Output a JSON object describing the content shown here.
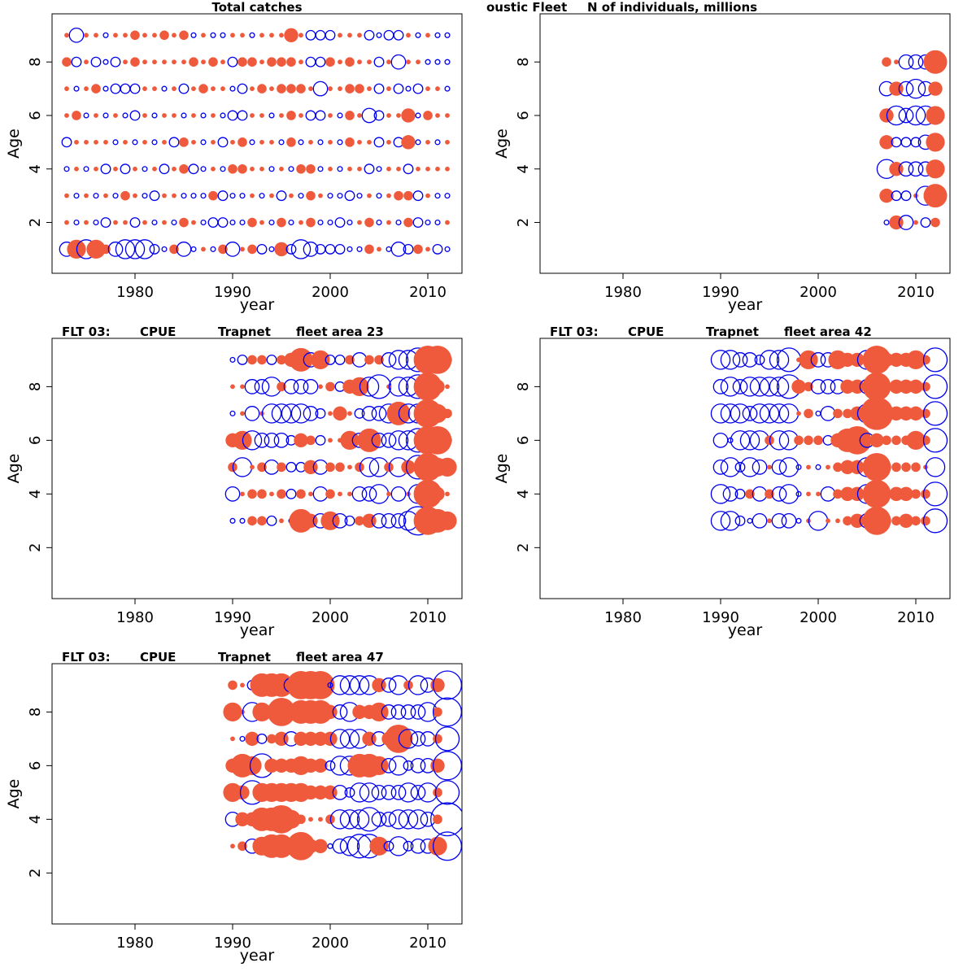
{
  "colors": {
    "positive": "#ef5a3c",
    "negative": "#0000ee",
    "frame": "#000000"
  },
  "chart_data": [
    {
      "type": "bubble",
      "title_parts": [
        "Total catches"
      ],
      "xlabel": "year",
      "ylabel": "Age",
      "xlim": [
        1971.5,
        2013.5
      ],
      "ylim": [
        0.1,
        9.8
      ],
      "xticks": [
        1980,
        1990,
        2000,
        2010
      ],
      "yticks": [
        2,
        4,
        6,
        8
      ],
      "years": [
        1973,
        1974,
        1975,
        1976,
        1977,
        1978,
        1979,
        1980,
        1981,
        1982,
        1983,
        1984,
        1985,
        1986,
        1987,
        1988,
        1989,
        1990,
        1991,
        1992,
        1993,
        1994,
        1995,
        1996,
        1997,
        1998,
        1999,
        2000,
        2001,
        2002,
        2003,
        2004,
        2005,
        2006,
        2007,
        2008,
        2009,
        2010,
        2011,
        2012
      ],
      "ages": [
        1,
        2,
        3,
        4,
        5,
        6,
        7,
        8,
        9
      ],
      "residuals": [
        [
          -3,
          4,
          -4,
          4,
          2,
          -3,
          -4,
          -4,
          -4,
          -2,
          -1,
          2,
          -3,
          -1,
          1,
          -1,
          2,
          -3,
          1,
          2,
          -2,
          -1,
          3,
          -2,
          -4,
          -3,
          -2,
          -2,
          -2,
          -1,
          -1,
          2,
          1,
          -1,
          -3,
          -2,
          2,
          1,
          -2,
          -1
        ],
        [
          1,
          -1,
          1,
          -1,
          -2,
          1,
          1,
          -2,
          1,
          -1,
          1,
          -1,
          2,
          1,
          -1,
          -2,
          -2,
          -1,
          -1,
          2,
          1,
          -1,
          2,
          -1,
          1,
          2,
          -1,
          -1,
          -2,
          -1,
          1,
          2,
          -1,
          1,
          -1,
          2,
          -2,
          -1,
          -1,
          1
        ],
        [
          1,
          -1,
          1,
          -1,
          1,
          -1,
          2,
          1,
          -1,
          -2,
          1,
          1,
          -1,
          -1,
          -1,
          2,
          -2,
          -1,
          -1,
          1,
          -1,
          1,
          -2,
          1,
          -1,
          2,
          1,
          -1,
          -1,
          -2,
          -1,
          1,
          -1,
          1,
          2,
          2,
          -2,
          1,
          -1,
          -1
        ],
        [
          -1,
          1,
          -1,
          1,
          -2,
          1,
          -2,
          1,
          -1,
          1,
          -2,
          1,
          2,
          -2,
          -1,
          1,
          -1,
          2,
          2,
          1,
          1,
          -1,
          1,
          -1,
          2,
          2,
          -1,
          1,
          -1,
          1,
          1,
          -2,
          -1,
          1,
          1,
          -2,
          1,
          1,
          1,
          1
        ],
        [
          -2,
          1,
          1,
          1,
          1,
          -1,
          1,
          -1,
          1,
          -1,
          1,
          -2,
          2,
          1,
          -1,
          1,
          -2,
          1,
          2,
          -1,
          1,
          1,
          -1,
          2,
          -1,
          1,
          -1,
          1,
          -1,
          2,
          1,
          1,
          -2,
          1,
          -2,
          3,
          -1,
          1,
          -1,
          1
        ],
        [
          1,
          2,
          -1,
          1,
          -1,
          1,
          -1,
          -2,
          1,
          -1,
          1,
          1,
          -1,
          1,
          -1,
          1,
          -1,
          -2,
          -2,
          1,
          1,
          -1,
          1,
          2,
          1,
          -2,
          -2,
          1,
          -1,
          2,
          1,
          -3,
          -2,
          1,
          1,
          3,
          -1,
          2,
          1,
          1
        ],
        [
          1,
          -1,
          1,
          2,
          -1,
          -2,
          -2,
          -2,
          1,
          1,
          -1,
          1,
          -2,
          1,
          2,
          1,
          1,
          -1,
          -2,
          1,
          2,
          1,
          2,
          2,
          2,
          1,
          -3,
          1,
          1,
          2,
          2,
          1,
          -2,
          1,
          -2,
          -1,
          -2,
          1,
          1,
          -1
        ],
        [
          2,
          -2,
          1,
          -2,
          -1,
          -2,
          1,
          2,
          1,
          1,
          1,
          1,
          1,
          2,
          1,
          2,
          1,
          -2,
          2,
          2,
          1,
          2,
          2,
          2,
          1,
          -2,
          -2,
          2,
          1,
          2,
          1,
          1,
          -2,
          1,
          -3,
          1,
          1,
          -1,
          -1,
          -1
        ],
        [
          1,
          -3,
          1,
          1,
          -1,
          1,
          1,
          2,
          1,
          1,
          2,
          1,
          2,
          -1,
          1,
          -1,
          -1,
          1,
          1,
          -1,
          1,
          1,
          1,
          3,
          1,
          -2,
          -2,
          -2,
          1,
          1,
          1,
          -2,
          -1,
          -2,
          -2,
          1,
          -1,
          1,
          -1,
          -1
        ]
      ]
    },
    {
      "type": "bubble",
      "title_parts": [
        "oustic Fleet",
        "N of individuals, millions"
      ],
      "xlabel": "year",
      "ylabel": "Age",
      "xlim": [
        1971.5,
        2013.5
      ],
      "ylim": [
        0.1,
        9.8
      ],
      "xticks": [
        1980,
        1990,
        2000,
        2010
      ],
      "yticks": [
        2,
        4,
        6,
        8
      ],
      "years": [
        2007,
        2008,
        2009,
        2010,
        2011,
        2012
      ],
      "ages": [
        2,
        3,
        4,
        5,
        6,
        7,
        8
      ],
      "residuals": [
        [
          -1,
          3,
          -3,
          1,
          -2,
          2
        ],
        [
          3,
          -2,
          -2,
          1,
          -4,
          5
        ],
        [
          -4,
          3,
          -3,
          -3,
          -3,
          4
        ],
        [
          3,
          -2,
          -2,
          -2,
          -3,
          4
        ],
        [
          3,
          -4,
          -3,
          -4,
          -4,
          4
        ],
        [
          -3,
          3,
          -3,
          -4,
          -3,
          3
        ],
        [
          2,
          1,
          -3,
          -3,
          -3,
          5
        ]
      ]
    },
    {
      "type": "bubble",
      "title_parts": [
        "FLT 03:",
        "CPUE",
        "Trapnet",
        "fleet area 23"
      ],
      "xlabel": "year",
      "ylabel": "Age",
      "xlim": [
        1971.5,
        2013.5
      ],
      "ylim": [
        0.1,
        9.8
      ],
      "xticks": [
        1980,
        1990,
        2000,
        2010
      ],
      "yticks": [
        2,
        4,
        6,
        8
      ],
      "years": [
        1990,
        1991,
        1992,
        1993,
        1994,
        1995,
        1996,
        1997,
        1998,
        1999,
        2000,
        2001,
        2002,
        2003,
        2004,
        2005,
        2006,
        2007,
        2008,
        2009,
        2010,
        2011,
        2012
      ],
      "ages": [
        3,
        4,
        5,
        6,
        7,
        8,
        9
      ],
      "residuals": [
        [
          -1,
          -1,
          2,
          2,
          -2,
          1,
          -1,
          5,
          3,
          -3,
          4,
          -3,
          -2,
          2,
          3,
          -3,
          -3,
          -3,
          -4,
          -6,
          6,
          5,
          4
        ],
        [
          -3,
          1,
          2,
          2,
          1,
          2,
          -2,
          2,
          1,
          -3,
          2,
          1,
          1,
          -3,
          -3,
          -4,
          1,
          -3,
          1,
          -4,
          6,
          3,
          1
        ],
        [
          2,
          -4,
          1,
          2,
          -3,
          2,
          -2,
          -2,
          3,
          -3,
          2,
          2,
          1,
          2,
          -4,
          -4,
          2,
          -4,
          3,
          -5,
          6,
          4,
          4
        ],
        [
          3,
          4,
          -4,
          -3,
          -3,
          -3,
          -2,
          3,
          2,
          -2,
          1,
          1,
          4,
          -3,
          5,
          -3,
          -3,
          -4,
          -4,
          -5,
          6,
          6,
          2
        ],
        [
          -1,
          1,
          -3,
          1,
          -4,
          -4,
          -4,
          -4,
          -3,
          -2,
          1,
          3,
          1,
          -2,
          -3,
          -3,
          -4,
          5,
          -4,
          -4,
          6,
          4,
          2
        ],
        [
          1,
          1,
          -3,
          -3,
          -4,
          2,
          -3,
          -3,
          -3,
          1,
          2,
          -2,
          3,
          4,
          -4,
          -5,
          1,
          -4,
          -4,
          -5,
          6,
          3,
          1
        ],
        [
          -1,
          -2,
          2,
          2,
          -2,
          2,
          3,
          5,
          -3,
          4,
          -2,
          -2,
          2,
          -3,
          2,
          2,
          -3,
          -4,
          -4,
          -5,
          6,
          6,
          2
        ]
      ]
    },
    {
      "type": "bubble",
      "title_parts": [
        "FLT 03:",
        "CPUE",
        "Trapnet",
        "fleet area 42"
      ],
      "xlabel": "year",
      "ylabel": "Age",
      "xlim": [
        1971.5,
        2013.5
      ],
      "ylim": [
        0.1,
        9.8
      ],
      "xticks": [
        1980,
        1990,
        2000,
        2010
      ],
      "yticks": [
        2,
        4,
        6,
        8
      ],
      "years": [
        1990,
        1991,
        1992,
        1993,
        1994,
        1995,
        1996,
        1997,
        1998,
        1999,
        2000,
        2001,
        2002,
        2003,
        2004,
        2005,
        2006,
        2007,
        2008,
        2009,
        2010,
        2011,
        2012
      ],
      "ages": [
        3,
        4,
        5,
        6,
        7,
        8,
        9
      ],
      "residuals": [
        [
          -4,
          -4,
          -2,
          -1,
          -3,
          1,
          -3,
          -3,
          -1,
          1,
          -4,
          1,
          1,
          2,
          3,
          -3,
          6,
          2,
          2,
          3,
          2,
          2,
          -5
        ],
        [
          -4,
          -3,
          -2,
          2,
          -3,
          2,
          -3,
          -4,
          -1,
          1,
          1,
          -3,
          2,
          3,
          3,
          -4,
          6,
          2,
          3,
          3,
          2,
          2,
          -5
        ],
        [
          -3,
          -4,
          -2,
          -4,
          -3,
          1,
          -3,
          -4,
          -1,
          1,
          -1,
          1,
          2,
          3,
          3,
          -4,
          6,
          2,
          2,
          2,
          2,
          1,
          -4
        ],
        [
          -3,
          -1,
          -4,
          -4,
          -4,
          2,
          -4,
          -4,
          2,
          2,
          2,
          -2,
          3,
          5,
          6,
          -3,
          3,
          2,
          2,
          2,
          4,
          2,
          -5
        ],
        [
          -4,
          -4,
          -4,
          -3,
          -4,
          -4,
          -4,
          -4,
          1,
          2,
          -1,
          -3,
          2,
          2,
          3,
          -4,
          7,
          3,
          3,
          3,
          3,
          2,
          -5
        ],
        [
          -3,
          -4,
          -3,
          -4,
          -4,
          -4,
          -4,
          -5,
          3,
          2,
          -3,
          -3,
          -3,
          3,
          3,
          -3,
          6,
          2,
          3,
          3,
          3,
          2,
          -5
        ],
        [
          -4,
          -4,
          -3,
          -3,
          -2,
          -4,
          -4,
          -5,
          1,
          4,
          -3,
          -3,
          4,
          3,
          3,
          -4,
          6,
          3,
          3,
          3,
          4,
          2,
          -5
        ]
      ]
    },
    {
      "type": "bubble",
      "title_parts": [
        "FLT 03:",
        "CPUE",
        "Trapnet",
        "fleet area 47"
      ],
      "xlabel": "year",
      "ylabel": "Age",
      "xlim": [
        1971.5,
        2013.5
      ],
      "ylim": [
        0.1,
        9.8
      ],
      "xticks": [
        1980,
        1990,
        2000,
        2010
      ],
      "yticks": [
        2,
        4,
        6,
        8
      ],
      "years": [
        1990,
        1991,
        1992,
        1993,
        1994,
        1995,
        1996,
        1997,
        1998,
        1999,
        2000,
        2001,
        2002,
        2003,
        2004,
        2005,
        2006,
        2007,
        2008,
        2009,
        2010,
        2011,
        2012
      ],
      "ages": [
        3,
        4,
        5,
        6,
        7,
        8,
        9
      ],
      "residuals": [
        [
          1,
          2,
          -3,
          4,
          5,
          5,
          3,
          6,
          3,
          3,
          -1,
          -3,
          -4,
          -5,
          -5,
          4,
          -2,
          -4,
          -2,
          -3,
          -3,
          4,
          -6
        ],
        [
          -3,
          3,
          3,
          5,
          5,
          6,
          4,
          2,
          1,
          1,
          2,
          -4,
          -4,
          -4,
          -5,
          -3,
          -3,
          -4,
          -4,
          -4,
          -3,
          2,
          -7
        ],
        [
          4,
          3,
          -5,
          4,
          4,
          4,
          4,
          4,
          3,
          3,
          3,
          -3,
          -2,
          -4,
          -4,
          -3,
          -3,
          -3,
          -4,
          -3,
          -4,
          2,
          -5
        ],
        [
          3,
          5,
          4,
          -5,
          3,
          3,
          3,
          4,
          3,
          3,
          -2,
          -4,
          -4,
          5,
          5,
          4,
          -3,
          -4,
          -2,
          -3,
          -3,
          3,
          -6
        ],
        [
          1,
          -1,
          3,
          -2,
          2,
          3,
          -3,
          3,
          3,
          3,
          3,
          -4,
          -4,
          -4,
          3,
          -3,
          3,
          6,
          -4,
          -3,
          -3,
          2,
          -5
        ],
        [
          4,
          1,
          -4,
          4,
          1,
          6,
          3,
          5,
          5,
          5,
          3,
          -3,
          -4,
          3,
          3,
          4,
          -3,
          -3,
          -3,
          -3,
          -4,
          2,
          -6
        ],
        [
          2,
          1,
          -2,
          5,
          5,
          5,
          -3,
          6,
          6,
          6,
          -1,
          -4,
          -4,
          -4,
          -4,
          3,
          -3,
          -4,
          2,
          -4,
          -3,
          3,
          -6
        ]
      ]
    }
  ]
}
